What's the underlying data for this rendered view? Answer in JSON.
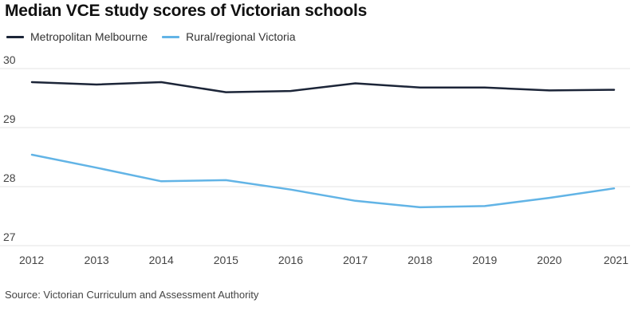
{
  "title": "Median VCE study scores of Victorian schools",
  "source": "Source: Victorian Curriculum and Assessment Authority",
  "chart_data": {
    "type": "line",
    "x": [
      "2012",
      "2013",
      "2014",
      "2015",
      "2016",
      "2017",
      "2018",
      "2019",
      "2020",
      "2021"
    ],
    "ylim": [
      27,
      30
    ],
    "yticks": [
      27,
      28,
      29,
      30
    ],
    "grid": true,
    "legend_position": "top-left",
    "series": [
      {
        "name": "Metropolitan Melbourne",
        "color": "#1c2538",
        "values": [
          29.77,
          29.73,
          29.77,
          29.6,
          29.62,
          29.75,
          29.68,
          29.68,
          29.63,
          29.64
        ]
      },
      {
        "name": "Rural/regional Victoria",
        "color": "#62b4e6",
        "values": [
          28.54,
          28.32,
          28.09,
          28.11,
          27.95,
          27.76,
          27.65,
          27.67,
          27.81,
          27.97
        ]
      }
    ]
  }
}
